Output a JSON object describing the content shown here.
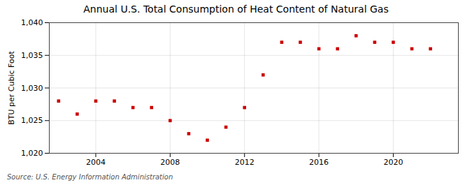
{
  "chart_data": {
    "type": "scatter",
    "title": "Annual U.S. Total Consumption of Heat Content of Natural Gas",
    "ylabel": "BTU per Cubic Foot",
    "annotations": [
      "Source: U.S. Energy Information Administration"
    ],
    "x": [
      2002,
      2003,
      2004,
      2005,
      2006,
      2007,
      2008,
      2009,
      2010,
      2011,
      2012,
      2013,
      2014,
      2015,
      2016,
      2017,
      2018,
      2019,
      2020,
      2021,
      2022
    ],
    "values": [
      1028,
      1026,
      1028,
      1028,
      1027,
      1027,
      1025,
      1023,
      1022,
      1024,
      1027,
      1032,
      1037,
      1037,
      1036,
      1036,
      1038,
      1037,
      1037,
      1036,
      1036
    ],
    "color": "#cc0000",
    "marker": "square",
    "xlim": [
      2001.5,
      2023.5
    ],
    "xticks": [
      2004,
      2008,
      2012,
      2016,
      2020
    ],
    "ylim": [
      1020,
      1040
    ],
    "yticks": [
      {
        "value": 1020,
        "label": "1,020"
      },
      {
        "value": 1025,
        "label": "1,025"
      },
      {
        "value": 1030,
        "label": "1,030"
      },
      {
        "value": 1035,
        "label": "1,035"
      },
      {
        "value": 1040,
        "label": "1,040"
      }
    ],
    "grid": true
  }
}
